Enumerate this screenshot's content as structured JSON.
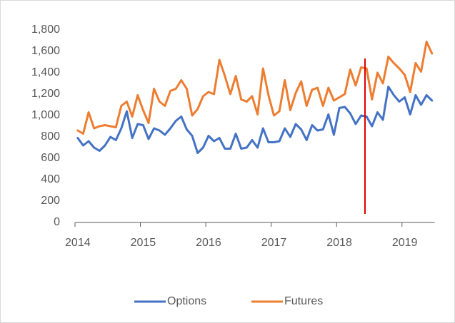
{
  "chart_data": {
    "type": "line",
    "categories": [
      "2014",
      null,
      null,
      null,
      null,
      null,
      null,
      null,
      null,
      null,
      null,
      null,
      "2015",
      null,
      null,
      null,
      null,
      null,
      null,
      null,
      null,
      null,
      null,
      null,
      "2016",
      null,
      null,
      null,
      null,
      null,
      null,
      null,
      null,
      null,
      null,
      null,
      "2017",
      null,
      null,
      null,
      null,
      null,
      null,
      null,
      null,
      null,
      null,
      null,
      "2018",
      null,
      null,
      null,
      null,
      null,
      null,
      null,
      null,
      null,
      null,
      null,
      "2019",
      null,
      null,
      null,
      null,
      null
    ],
    "series": [
      {
        "name": "Options",
        "color": "#4472c4",
        "values": [
          790,
          720,
          760,
          700,
          670,
          720,
          800,
          770,
          880,
          1040,
          790,
          920,
          910,
          780,
          880,
          860,
          820,
          880,
          950,
          990,
          870,
          810,
          650,
          700,
          810,
          760,
          790,
          690,
          690,
          830,
          690,
          700,
          770,
          700,
          880,
          750,
          750,
          760,
          880,
          800,
          920,
          870,
          770,
          910,
          860,
          870,
          1010,
          820,
          1070,
          1080,
          1020,
          920,
          1000,
          990,
          900,
          1030,
          960,
          1270,
          1190,
          1130,
          1170,
          1010,
          1190,
          1100,
          1190,
          1140
        ]
      },
      {
        "name": "Futures",
        "color": "#ed7d31",
        "values": [
          860,
          830,
          1030,
          880,
          900,
          910,
          900,
          890,
          1090,
          1130,
          990,
          1190,
          1050,
          930,
          1250,
          1130,
          1090,
          1230,
          1250,
          1330,
          1250,
          1000,
          1060,
          1180,
          1220,
          1200,
          1520,
          1370,
          1200,
          1370,
          1150,
          1130,
          1180,
          1010,
          1440,
          1190,
          1000,
          1040,
          1330,
          1050,
          1210,
          1320,
          1090,
          1240,
          1260,
          1090,
          1260,
          1140,
          1170,
          1200,
          1430,
          1280,
          1450,
          1440,
          1150,
          1400,
          1300,
          1550,
          1490,
          1440,
          1380,
          1220,
          1490,
          1410,
          1690,
          1580
        ]
      }
    ],
    "ylim": [
      0,
      1800
    ],
    "yticks": [
      0,
      200,
      400,
      600,
      800,
      {
        "value": 1000,
        "label": "1,000"
      },
      {
        "value": 1200,
        "label": "1,200"
      },
      {
        "value": 1400,
        "label": "1,400"
      },
      {
        "value": 1600,
        "label": "1,600"
      },
      {
        "value": 1800,
        "label": "1,800"
      }
    ],
    "grid": false,
    "legend": "bottom"
  }
}
